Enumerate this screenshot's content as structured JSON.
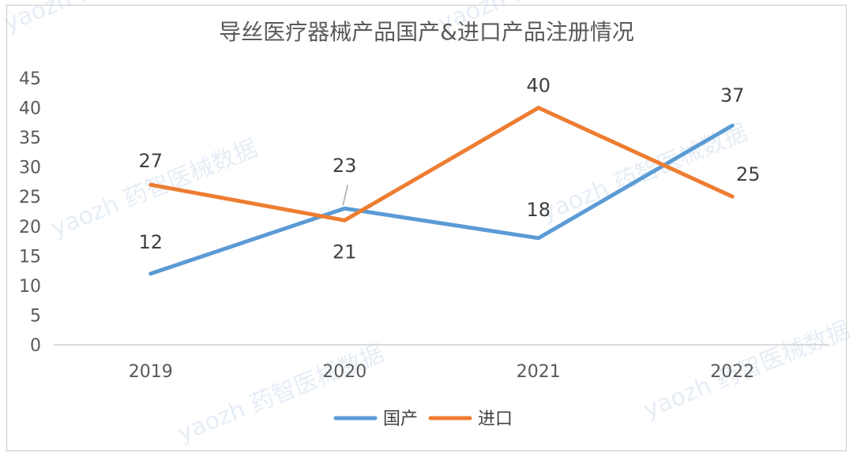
{
  "chart_data": {
    "type": "line",
    "title": "导丝医疗器械产品国产&进口产品注册情况",
    "categories": [
      "2019",
      "2020",
      "2021",
      "2022"
    ],
    "ylim": [
      0,
      45
    ],
    "yticks": [
      "0",
      "5",
      "10",
      "15",
      "20",
      "25",
      "30",
      "35",
      "40",
      "45"
    ],
    "grid": false,
    "legend_position": "bottom",
    "series": [
      {
        "name": "国产",
        "color": "#5b9bd5",
        "values": [
          12,
          23,
          18,
          37
        ]
      },
      {
        "name": "进口",
        "color": "#ed7d31",
        "values": [
          27,
          21,
          40,
          25
        ]
      }
    ]
  },
  "watermark": {
    "text": "yaozh 药智医械数据"
  }
}
